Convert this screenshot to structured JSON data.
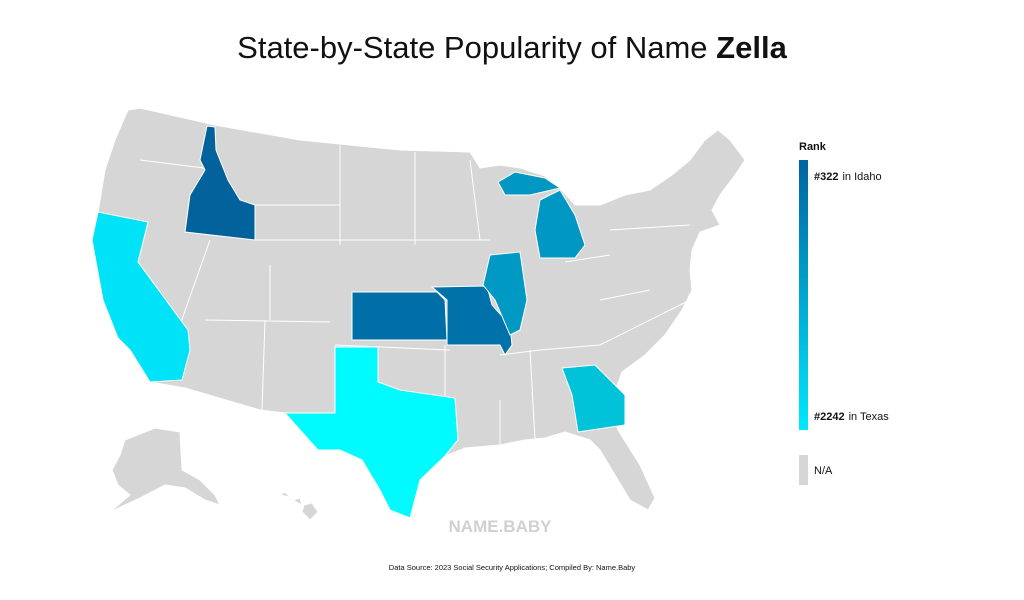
{
  "title": {
    "text": "State-by-State Popularity of Name",
    "name": "Zella"
  },
  "map": {
    "base_color": "#d6d6d6",
    "highlighted": [
      {
        "color": "#02629c"
      },
      {
        "color": "#00e2f7"
      },
      {
        "color": "#00fbff"
      },
      {
        "color": "#006fa8"
      },
      {
        "color": "#0072aa"
      },
      {
        "color": "#0099c4"
      },
      {
        "color": "#0097c2"
      },
      {
        "color": "#00c3da"
      }
    ]
  },
  "legend": {
    "heading": "Rank",
    "top": {
      "rank": "#322",
      "label": "in Idaho"
    },
    "bottom": {
      "rank": "#2242",
      "label": "in Texas"
    },
    "top_color": "#00639f",
    "bottom_color": "#00e8ff",
    "na": "N/A",
    "na_color": "#d6d6d6"
  },
  "watermark": "NAME.BABY",
  "source": "Data Source: 2023 Social Security Applications; Compiled By: Name.Baby"
}
